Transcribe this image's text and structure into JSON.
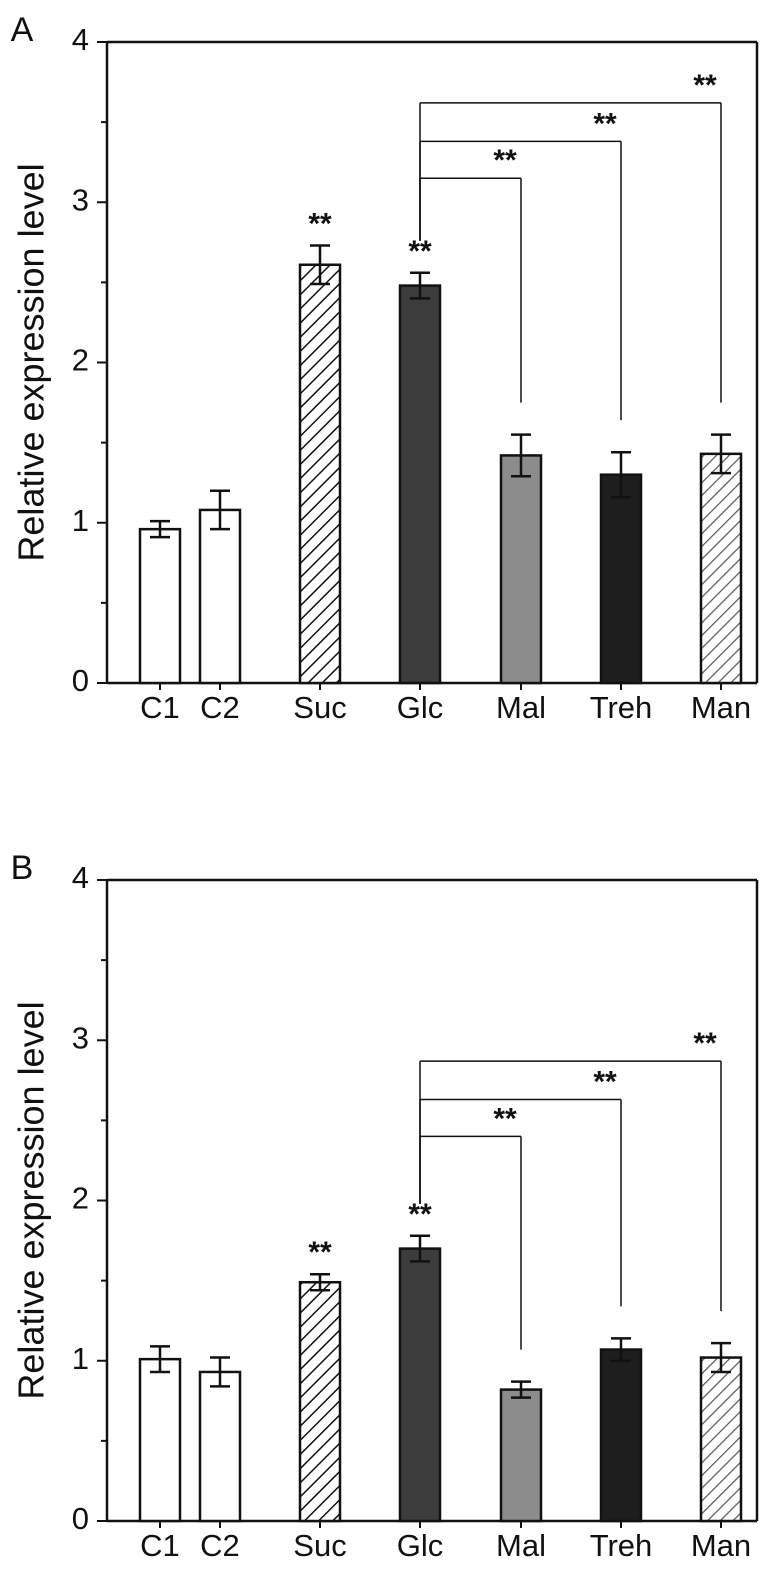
{
  "chart_data": [
    {
      "type": "bar",
      "panel_label": "A",
      "categories": [
        "C1",
        "C2",
        "Suc",
        "Glc",
        "Mal",
        "Treh",
        "Man"
      ],
      "values": [
        0.96,
        1.08,
        2.61,
        2.48,
        1.42,
        1.3,
        1.43
      ],
      "errors": [
        0.05,
        0.12,
        0.12,
        0.08,
        0.13,
        0.14,
        0.12
      ],
      "fills": [
        "white",
        "white",
        "hatch",
        "dark",
        "gray",
        "black",
        "hatch-light"
      ],
      "ylabel": "Relative expression level",
      "xlabel": "",
      "ylim": [
        0,
        4
      ],
      "yticks": [
        "0",
        "1",
        "2",
        "3",
        "4"
      ],
      "bar_stars": [
        {
          "category": "Suc",
          "text": "**"
        },
        {
          "category": "Glc",
          "text": "**"
        }
      ],
      "comparisons": [
        {
          "from": "Glc",
          "to": "Mal",
          "level": 3.15,
          "text": "**"
        },
        {
          "from": "Glc",
          "to": "Treh",
          "level": 3.38,
          "text": "**"
        },
        {
          "from": "Glc",
          "to": "Man",
          "level": 3.62,
          "text": "**"
        }
      ]
    },
    {
      "type": "bar",
      "panel_label": "B",
      "categories": [
        "C1",
        "C2",
        "Suc",
        "Glc",
        "Mal",
        "Treh",
        "Man"
      ],
      "values": [
        1.01,
        0.93,
        1.49,
        1.7,
        0.82,
        1.07,
        1.02
      ],
      "errors": [
        0.08,
        0.09,
        0.05,
        0.08,
        0.05,
        0.07,
        0.09
      ],
      "fills": [
        "white",
        "white",
        "hatch",
        "dark",
        "gray",
        "black",
        "hatch-light"
      ],
      "ylabel": "Relative expression level",
      "xlabel": "",
      "ylim": [
        0,
        4
      ],
      "yticks": [
        "0",
        "1",
        "2",
        "3",
        "4"
      ],
      "bar_stars": [
        {
          "category": "Suc",
          "text": "**"
        },
        {
          "category": "Glc",
          "text": "**"
        }
      ],
      "comparisons": [
        {
          "from": "Glc",
          "to": "Mal",
          "level": 2.4,
          "text": "**"
        },
        {
          "from": "Glc",
          "to": "Treh",
          "level": 2.63,
          "text": "**"
        },
        {
          "from": "Glc",
          "to": "Man",
          "level": 2.87,
          "text": "**"
        }
      ]
    }
  ],
  "colors": {
    "axis": "#111111",
    "white": "#ffffff",
    "dark": "#3c3c3c",
    "gray": "#8c8c8c",
    "black": "#1e1e1e",
    "hatch_stroke": "#111111",
    "hatch_light_stroke": "#5a5a5a"
  }
}
